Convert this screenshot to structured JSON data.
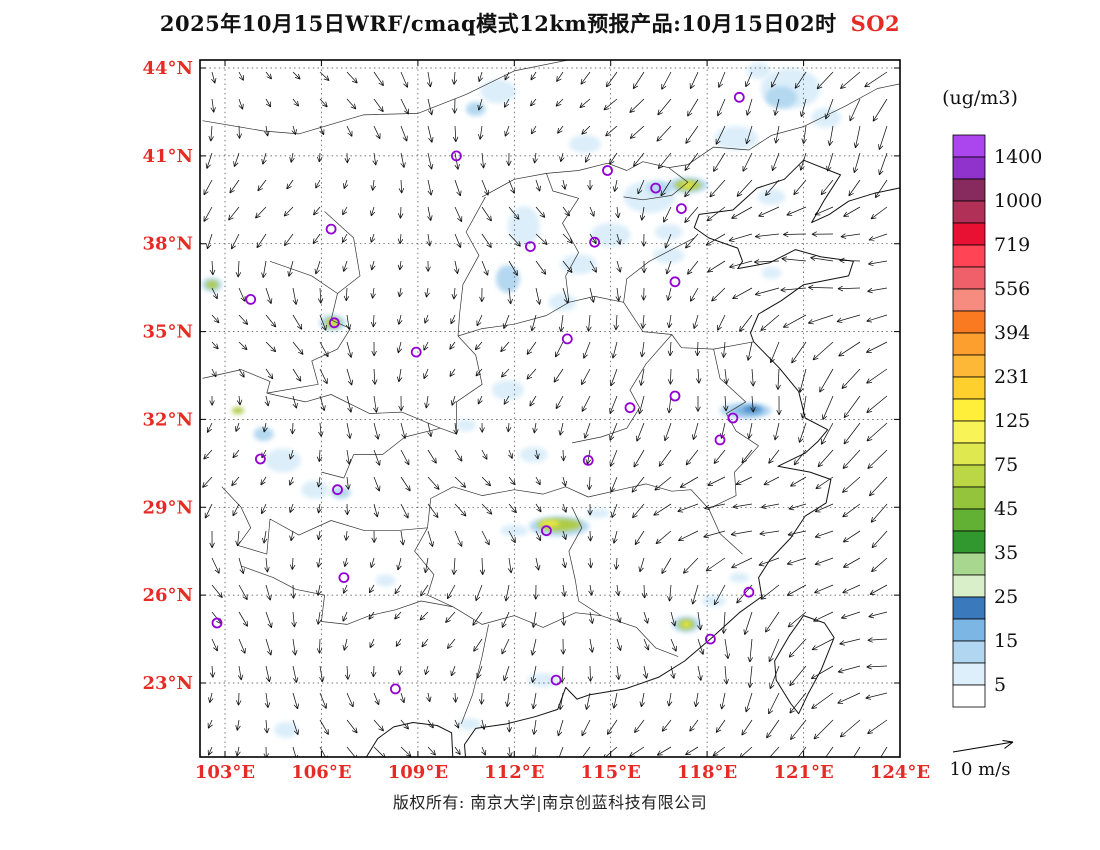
{
  "title": {
    "main": "2025年10月15日WRF/cmaq模式12km预报产品:10月15日02时",
    "pollutant": "SO2"
  },
  "footer": {
    "copyright": "版权所有: 南京大学|南京创蓝科技有限公司"
  },
  "chart_data": {
    "type": "heatmap",
    "units_label": "(ug/m3)",
    "wind_scale_label": "10 m/s",
    "wind_ref_speed_ms": 10,
    "lon_ticks": {
      "labels": [
        "103°E",
        "106°E",
        "109°E",
        "112°E",
        "115°E",
        "118°E",
        "121°E",
        "124°E"
      ],
      "values": [
        103,
        106,
        109,
        112,
        115,
        118,
        121,
        124
      ]
    },
    "lat_ticks": {
      "labels": [
        "44°N",
        "41°N",
        "38°N",
        "35°N",
        "32°N",
        "29°N",
        "26°N",
        "23°N"
      ],
      "values": [
        44,
        41,
        38,
        35,
        32,
        29,
        26,
        23
      ]
    },
    "lon_range": [
      102.22,
      124.0
    ],
    "lat_range": [
      20.48,
      44.27
    ],
    "colors": {
      "axis_labels": "#e62b25",
      "pollutant": "#e62b25",
      "station_ring": "#9400d3"
    },
    "legend": {
      "tick_labels": [
        "1400",
        "1000",
        "719",
        "556",
        "394",
        "231",
        "125",
        "75",
        "45",
        "35",
        "25",
        "15",
        "5"
      ],
      "band_colors": [
        "#ab45ee",
        "#8f33cc",
        "#872a5e",
        "#b13057",
        "#e81133",
        "#ff4455",
        "#f0606a",
        "#f68c7f",
        "#fa7a22",
        "#fd9f2f",
        "#feb838",
        "#fed02e",
        "#ffee3a",
        "#f8f356",
        "#dfe94f",
        "#bcd745",
        "#93c43c",
        "#62b135",
        "#31972f",
        "#a8d88f",
        "#d8efc9",
        "#3b79bd",
        "#7cb6e4",
        "#b0d6f1",
        "#ddeffb",
        "#ffffff"
      ]
    },
    "plume_colors": {
      "b1": "#dbeef9",
      "b2": "#b4d8f0",
      "b3": "#82b9e4",
      "b4": "#4a86c4",
      "g1": "#aecb45",
      "y1": "#f2ec45"
    },
    "plumes": [
      [
        120.6,
        43.3,
        30,
        20,
        "b1"
      ],
      [
        120.3,
        43.0,
        16,
        11,
        "b2"
      ],
      [
        121.7,
        42.3,
        15,
        10,
        "b1"
      ],
      [
        118.9,
        41.6,
        22,
        12,
        "b1"
      ],
      [
        119.6,
        43.9,
        12,
        8,
        "b1"
      ],
      [
        111.5,
        43.2,
        18,
        12,
        "b1"
      ],
      [
        110.8,
        42.6,
        10,
        7,
        "b2"
      ],
      [
        114.2,
        41.4,
        16,
        9,
        "b1"
      ],
      [
        116.2,
        39.6,
        26,
        16,
        "b1"
      ],
      [
        116.5,
        39.9,
        12,
        7,
        "b2"
      ],
      [
        115.0,
        38.3,
        20,
        12,
        "b1"
      ],
      [
        114.0,
        37.3,
        18,
        10,
        "b1"
      ],
      [
        112.3,
        38.6,
        16,
        20,
        "b1"
      ],
      [
        111.8,
        36.8,
        12,
        14,
        "b2"
      ],
      [
        113.5,
        36.0,
        14,
        9,
        "b1"
      ],
      [
        117.4,
        40.0,
        20,
        8,
        "b2"
      ],
      [
        117.4,
        40.0,
        13,
        5,
        "g1"
      ],
      [
        117.4,
        40.0,
        6,
        2.5,
        "y1"
      ],
      [
        120.0,
        39.6,
        14,
        8,
        "b1"
      ],
      [
        116.8,
        38.4,
        14,
        8,
        "b1"
      ],
      [
        116.8,
        37.6,
        16,
        8,
        "b1"
      ],
      [
        120.0,
        37.0,
        10,
        6,
        "b1"
      ],
      [
        102.6,
        36.6,
        10,
        7,
        "b2"
      ],
      [
        102.6,
        36.6,
        6,
        4,
        "g1"
      ],
      [
        106.35,
        35.3,
        13,
        8,
        "b2"
      ],
      [
        106.35,
        35.3,
        7,
        5,
        "g1"
      ],
      [
        106.35,
        35.3,
        3.5,
        2.2,
        "y1"
      ],
      [
        103.4,
        32.3,
        6,
        3.5,
        "g1"
      ],
      [
        104.8,
        30.6,
        18,
        12,
        "b1"
      ],
      [
        105.8,
        29.6,
        14,
        9,
        "b1"
      ],
      [
        104.2,
        31.5,
        10,
        7,
        "b2"
      ],
      [
        111.8,
        33.0,
        16,
        10,
        "b1"
      ],
      [
        112.6,
        30.8,
        14,
        8,
        "b1"
      ],
      [
        110.5,
        31.8,
        10,
        6,
        "b1"
      ],
      [
        113.4,
        28.35,
        30,
        10,
        "b2"
      ],
      [
        113.4,
        28.4,
        22,
        6,
        "g1"
      ],
      [
        113.1,
        28.45,
        10,
        3,
        "y1"
      ],
      [
        112.0,
        28.2,
        14,
        6,
        "b1"
      ],
      [
        114.6,
        28.8,
        12,
        5,
        "b1"
      ],
      [
        119.2,
        32.3,
        26,
        8,
        "b2"
      ],
      [
        119.3,
        32.3,
        16,
        5,
        "b3"
      ],
      [
        119.4,
        32.35,
        9,
        3,
        "b4"
      ],
      [
        117.35,
        25.0,
        14,
        8,
        "b2"
      ],
      [
        117.35,
        25.0,
        8,
        5,
        "g1"
      ],
      [
        117.35,
        25.0,
        4,
        2.5,
        "y1"
      ],
      [
        118.2,
        25.8,
        12,
        6,
        "b1"
      ],
      [
        119.0,
        26.6,
        10,
        5,
        "b1"
      ],
      [
        112.9,
        23.1,
        16,
        7,
        "b1"
      ],
      [
        110.6,
        21.6,
        12,
        6,
        "b1"
      ],
      [
        104.9,
        21.4,
        12,
        8,
        "b1"
      ],
      [
        108.0,
        26.5,
        10,
        6,
        "b1"
      ],
      [
        106.6,
        29.5,
        10,
        6,
        "b2"
      ]
    ],
    "stations": [
      [
        119.0,
        43.0
      ],
      [
        110.2,
        41.0
      ],
      [
        114.9,
        40.5
      ],
      [
        116.4,
        39.9
      ],
      [
        117.2,
        39.2
      ],
      [
        106.3,
        38.5
      ],
      [
        112.5,
        37.9
      ],
      [
        114.5,
        38.05
      ],
      [
        117.0,
        36.7
      ],
      [
        103.8,
        36.1
      ],
      [
        106.4,
        35.3
      ],
      [
        108.95,
        34.3
      ],
      [
        113.65,
        34.75
      ],
      [
        117.0,
        32.8
      ],
      [
        115.6,
        32.4
      ],
      [
        118.8,
        32.05
      ],
      [
        118.4,
        31.3
      ],
      [
        104.1,
        30.65
      ],
      [
        106.5,
        29.6
      ],
      [
        114.3,
        30.6
      ],
      [
        113.0,
        28.2
      ],
      [
        106.7,
        26.6
      ],
      [
        102.75,
        25.05
      ],
      [
        119.3,
        26.1
      ],
      [
        118.1,
        24.5
      ],
      [
        108.3,
        22.8
      ],
      [
        113.3,
        23.1
      ]
    ]
  }
}
